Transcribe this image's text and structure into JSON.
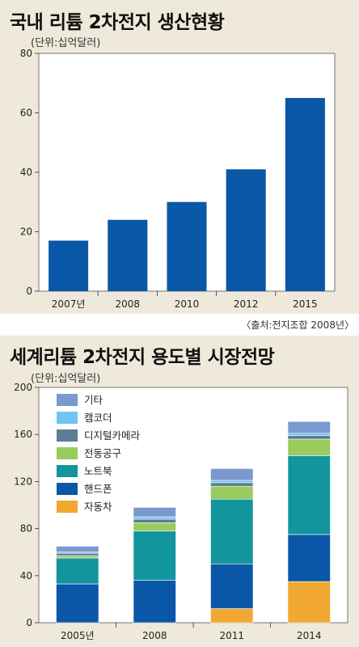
{
  "chart_data": [
    {
      "type": "bar",
      "title": "국내 리튬 2차전지 생산현황",
      "unit_label": "(단위:십억달러)",
      "source": "〈출처:전지조합 2008년〉",
      "categories": [
        "2007년",
        "2008",
        "2010",
        "2012",
        "2015"
      ],
      "values": [
        17,
        24,
        30,
        41,
        65
      ],
      "ylim": [
        0,
        80
      ],
      "yticks": [
        "0",
        "20",
        "40",
        "60",
        "80"
      ],
      "grid": false,
      "colors": {
        "bar": "#0a57a8",
        "panel": "#efe9dc",
        "plot": "#ffffff"
      }
    },
    {
      "type": "bar",
      "stacked": true,
      "title": "세계리튬 2차전지 용도별 시장전망",
      "unit_label": "(단위:십억달러)",
      "categories": [
        "2005년",
        "2008",
        "2011",
        "2014"
      ],
      "ylim": [
        0,
        200
      ],
      "yticks": [
        "0",
        "40",
        "80",
        "120",
        "160",
        "200"
      ],
      "grid": false,
      "legend_position": "top-left",
      "series": [
        {
          "name": "자동차",
          "color": "#f0a830",
          "values": [
            0,
            0,
            12,
            35
          ]
        },
        {
          "name": "핸드폰",
          "color": "#0a57a8",
          "values": [
            33,
            36,
            38,
            40
          ]
        },
        {
          "name": "노트북",
          "color": "#13959e",
          "values": [
            22,
            42,
            55,
            67
          ]
        },
        {
          "name": "전동공구",
          "color": "#9acb5c",
          "values": [
            2,
            7,
            11,
            14
          ]
        },
        {
          "name": "디지털카메라",
          "color": "#5d7c95",
          "values": [
            2,
            3,
            3,
            3
          ]
        },
        {
          "name": "캠코더",
          "color": "#6ec6ef",
          "values": [
            1,
            2,
            2,
            2
          ]
        },
        {
          "name": "기타",
          "color": "#7b99cf",
          "values": [
            5,
            8,
            10,
            10
          ]
        }
      ]
    }
  ]
}
